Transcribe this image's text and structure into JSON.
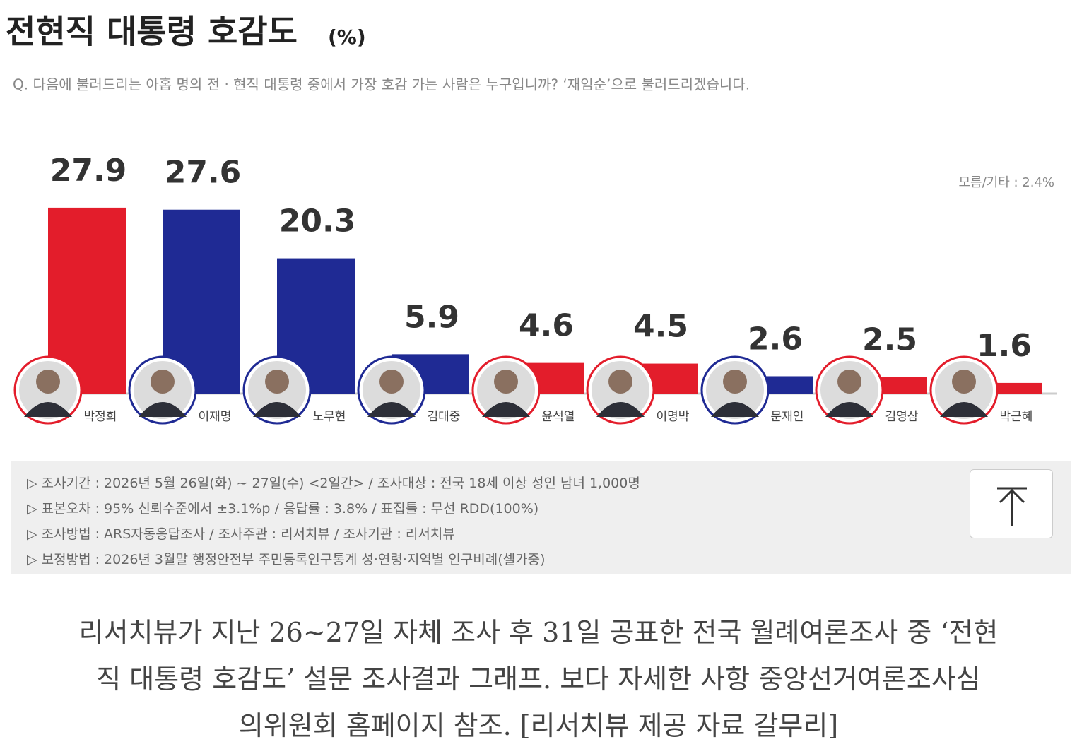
{
  "chart_data": {
    "type": "bar",
    "title": "전현직 대통령 호감도",
    "title_unit": "(%)",
    "subtitle": "Q. 다음에 불러드리는 아홉 명의 전 · 현직 대통령 중에서 가장 호감 가는 사람은 누구입니까? ‘재임순’으로 불러드리겠습니다.",
    "annotation": "모름/기타 : 2.4%",
    "categories": [
      "박정희",
      "이재명",
      "노무현",
      "김대중",
      "윤석열",
      "이명박",
      "문재인",
      "김영삼",
      "박근혜"
    ],
    "values": [
      27.9,
      27.6,
      20.3,
      5.9,
      4.6,
      4.5,
      2.6,
      2.5,
      1.6
    ],
    "colors": [
      "#e31d2b",
      "#1f2a94",
      "#1f2a94",
      "#1f2a94",
      "#e31d2b",
      "#e31d2b",
      "#1f2a94",
      "#e31d2b",
      "#e31d2b"
    ]
  },
  "notes": [
    "▷ 조사기간 : 2026년 5월 26일(화) ~ 27일(수) <2일간> / 조사대상 : 전국 18세 이상 성인 남녀 1,000명",
    "▷ 표본오차 : 95% 신뢰수준에서 ±3.1%p / 응답률 : 3.8% / 표집틀 : 무선 RDD(100%)",
    "▷ 조사방법 : ARS자동응답조사 / 조사주관 : 리서치뷰 / 조사기관 : 리서치뷰",
    "▷ 보정방법 : 2026년 3월말 행정안전부 주민등록인구통계 성·연령·지역별 인구비례(셀가중)"
  ],
  "caption": [
    "리서치뷰가 지난 26~27일 자체 조사 후 31일 공표한 전국 월례여론조사 중 ‘전현",
    "직 대통령 호감도’ 설문 조사결과 그래프. 보다 자세한 사항 중앙선거여론조사심",
    "의위원회 홈페이지 참조. [리서치뷰 제공 자료 갈무리]"
  ]
}
